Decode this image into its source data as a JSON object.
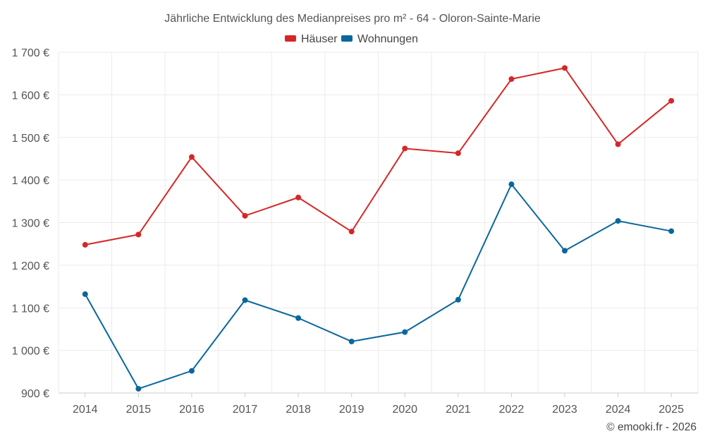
{
  "chart_data": {
    "type": "line",
    "title": "Jährliche Entwicklung des Medianpreises pro m² - 64 - Oloron-Sainte-Marie",
    "categories": [
      "2014",
      "2015",
      "2016",
      "2017",
      "2018",
      "2019",
      "2020",
      "2021",
      "2022",
      "2023",
      "2024",
      "2025"
    ],
    "series": [
      {
        "name": "Häuser",
        "color": "#d62728",
        "values": [
          1248,
          1272,
          1454,
          1316,
          1359,
          1279,
          1474,
          1463,
          1637,
          1663,
          1484,
          1586
        ]
      },
      {
        "name": "Wohnungen",
        "color": "#0a679c",
        "values": [
          1132,
          910,
          952,
          1118,
          1076,
          1021,
          1043,
          1119,
          1390,
          1234,
          1304,
          1280
        ]
      }
    ],
    "ylim": [
      900,
      1700
    ],
    "yticks": [
      900,
      1000,
      1100,
      1200,
      1300,
      1400,
      1500,
      1600,
      1700
    ],
    "ytick_labels": [
      "900 €",
      "1 000 €",
      "1 100 €",
      "1 200 €",
      "1 300 €",
      "1 400 €",
      "1 500 €",
      "1 600 €",
      "1 700 €"
    ],
    "grid": true,
    "legend_position": "top-center"
  },
  "credit": "© emooki.fr - 2026"
}
